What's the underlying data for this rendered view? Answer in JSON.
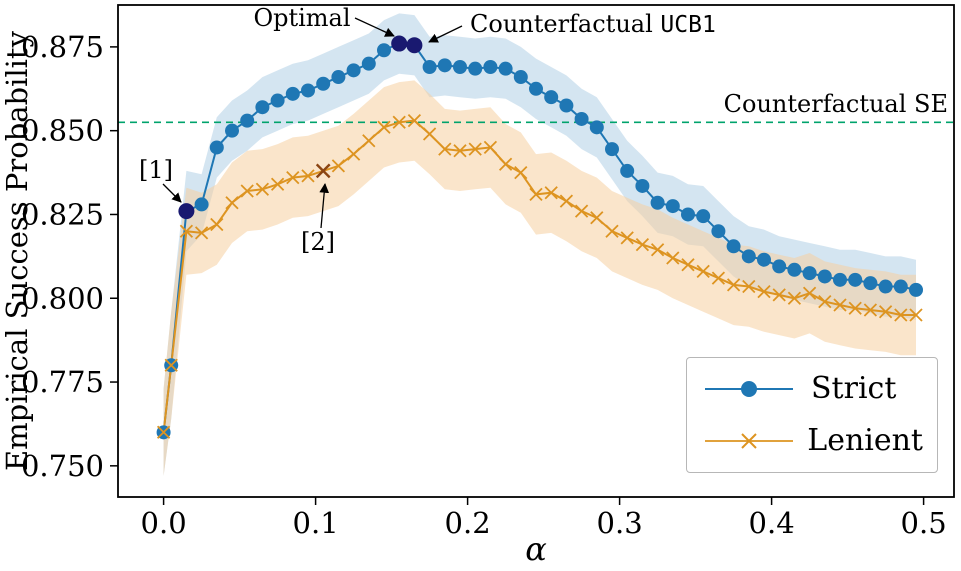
{
  "chart_data": {
    "type": "line",
    "title": "",
    "xlabel": "α",
    "ylabel": "Empirical Success Probability",
    "xlim": [
      -0.03,
      0.52
    ],
    "ylim": [
      0.7407,
      0.8875
    ],
    "grid": false,
    "x_ticks": {
      "values": [
        0.0,
        0.1,
        0.2,
        0.3,
        0.4,
        0.5
      ],
      "labels": [
        "0.0",
        "0.1",
        "0.2",
        "0.3",
        "0.4",
        "0.5"
      ]
    },
    "y_ticks": {
      "values": [
        0.75,
        0.775,
        0.8,
        0.825,
        0.85,
        0.875
      ],
      "labels": [
        "0.750",
        "0.775",
        "0.800",
        "0.825",
        "0.850",
        "0.875"
      ]
    },
    "x": [
      0.0,
      0.005,
      0.015,
      0.025,
      0.035,
      0.045,
      0.055,
      0.065,
      0.075,
      0.085,
      0.095,
      0.105,
      0.115,
      0.125,
      0.135,
      0.145,
      0.155,
      0.165,
      0.175,
      0.185,
      0.195,
      0.205,
      0.215,
      0.225,
      0.235,
      0.245,
      0.255,
      0.265,
      0.275,
      0.285,
      0.295,
      0.305,
      0.315,
      0.325,
      0.335,
      0.345,
      0.355,
      0.365,
      0.375,
      0.385,
      0.395,
      0.405,
      0.415,
      0.425,
      0.435,
      0.445,
      0.455,
      0.465,
      0.475,
      0.485,
      0.495
    ],
    "series": [
      {
        "name": "Strict",
        "marker": "circle",
        "color": "#1f77b4",
        "band_color": "#a9cbe4",
        "band_opacity": 0.5,
        "values": [
          0.76,
          0.78,
          0.826,
          0.828,
          0.845,
          0.85,
          0.853,
          0.857,
          0.859,
          0.861,
          0.862,
          0.864,
          0.866,
          0.868,
          0.87,
          0.874,
          0.876,
          0.8755,
          0.869,
          0.8695,
          0.869,
          0.8685,
          0.869,
          0.8685,
          0.866,
          0.8625,
          0.86,
          0.8575,
          0.8535,
          0.851,
          0.8445,
          0.838,
          0.8335,
          0.8285,
          0.8275,
          0.825,
          0.8245,
          0.82,
          0.8155,
          0.8125,
          0.8115,
          0.8095,
          0.8085,
          0.8075,
          0.8065,
          0.8055,
          0.8055,
          0.8045,
          0.8035,
          0.8035,
          0.8025
        ],
        "band": [
          0.013,
          0.016,
          0.012,
          0.009,
          0.009,
          0.009,
          0.009,
          0.009,
          0.009,
          0.009,
          0.009,
          0.009,
          0.009,
          0.009,
          0.009,
          0.009,
          0.009,
          0.009,
          0.009,
          0.009,
          0.009,
          0.009,
          0.009,
          0.009,
          0.009,
          0.009,
          0.009,
          0.009,
          0.009,
          0.009,
          0.009,
          0.009,
          0.009,
          0.009,
          0.009,
          0.009,
          0.009,
          0.009,
          0.009,
          0.009,
          0.009,
          0.009,
          0.009,
          0.009,
          0.009,
          0.009,
          0.009,
          0.009,
          0.009,
          0.009,
          0.009
        ]
      },
      {
        "name": "Lenient",
        "marker": "x",
        "color": "#dd9421",
        "band_color": "#f6cfa0",
        "band_opacity": 0.55,
        "values": [
          0.76,
          0.78,
          0.82,
          0.8195,
          0.822,
          0.8285,
          0.832,
          0.8325,
          0.834,
          0.836,
          0.8365,
          0.838,
          0.8395,
          0.843,
          0.847,
          0.851,
          0.8525,
          0.853,
          0.849,
          0.8445,
          0.844,
          0.8445,
          0.845,
          0.84,
          0.8375,
          0.831,
          0.8315,
          0.829,
          0.826,
          0.824,
          0.82,
          0.818,
          0.816,
          0.8145,
          0.812,
          0.81,
          0.808,
          0.806,
          0.804,
          0.8035,
          0.802,
          0.801,
          0.8,
          0.8015,
          0.799,
          0.798,
          0.797,
          0.7965,
          0.796,
          0.795,
          0.795
        ],
        "band": [
          0.013,
          0.016,
          0.013,
          0.012,
          0.012,
          0.012,
          0.012,
          0.012,
          0.012,
          0.012,
          0.012,
          0.012,
          0.012,
          0.012,
          0.012,
          0.012,
          0.012,
          0.012,
          0.012,
          0.012,
          0.012,
          0.012,
          0.012,
          0.012,
          0.012,
          0.012,
          0.012,
          0.012,
          0.012,
          0.012,
          0.012,
          0.012,
          0.012,
          0.012,
          0.012,
          0.012,
          0.012,
          0.012,
          0.012,
          0.012,
          0.012,
          0.012,
          0.012,
          0.012,
          0.012,
          0.012,
          0.012,
          0.012,
          0.012,
          0.012,
          0.012
        ]
      }
    ],
    "reference_line": {
      "label": "Counterfactual SE",
      "value": 0.8525,
      "color": "#00a36c",
      "style": "dashed"
    },
    "highlight_points": [
      {
        "series": "Strict",
        "x": 0.015,
        "y": 0.826,
        "color": "#191970",
        "ref": "[1]"
      },
      {
        "series": "Strict",
        "x": 0.155,
        "y": 0.876,
        "color": "#191970",
        "ref": "Optimal"
      },
      {
        "series": "Strict",
        "x": 0.165,
        "y": 0.8755,
        "color": "#191970",
        "ref": "Counterfactual UCB1"
      },
      {
        "series": "Lenient",
        "x": 0.105,
        "y": 0.838,
        "color": "#8b4513",
        "ref": "[2]"
      }
    ],
    "annotations": [
      {
        "id": "optimal",
        "text": "Optimal",
        "target": [
          0.155,
          0.876
        ]
      },
      {
        "id": "counterfactual-ucb1",
        "text": "Counterfactual UCB1",
        "text_main": "Counterfactual ",
        "text_mono": "UCB1",
        "target": [
          0.165,
          0.8755
        ]
      },
      {
        "id": "ref-1",
        "text": "[1]",
        "target": [
          0.015,
          0.826
        ]
      },
      {
        "id": "ref-2",
        "text": "[2]",
        "target": [
          0.105,
          0.838
        ]
      },
      {
        "id": "counterfactual-se",
        "text": "Counterfactual SE",
        "target": null
      }
    ],
    "legend": {
      "position": "lower right",
      "items": [
        {
          "label": "Strict",
          "marker": "circle"
        },
        {
          "label": "Lenient",
          "marker": "x"
        }
      ]
    },
    "axis_color": "#000000"
  }
}
